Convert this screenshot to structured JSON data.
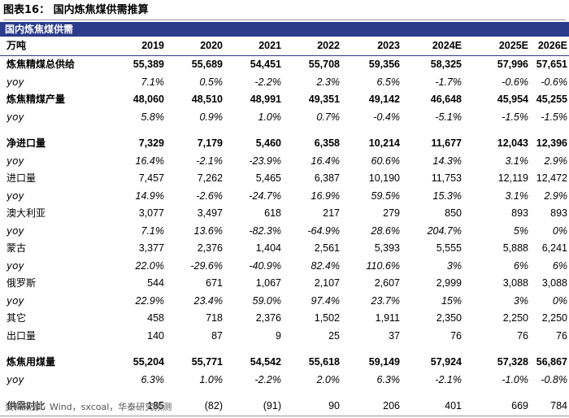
{
  "title": "图表16：  国内炼焦煤供需推算",
  "section_header": "国内炼焦煤供需",
  "unit_label": "万吨",
  "years": [
    "2019",
    "2020",
    "2021",
    "2022",
    "2023",
    "2024E",
    "2025E",
    "2026E"
  ],
  "rows": [
    {
      "label": "炼焦精煤总供给",
      "style": "bold",
      "values": [
        "55,389",
        "55,689",
        "54,451",
        "55,708",
        "59,356",
        "58,325",
        "57,996",
        "57,651"
      ]
    },
    {
      "label": "yoy",
      "style": "yoy",
      "values": [
        "7.1%",
        "0.5%",
        "-2.2%",
        "2.3%",
        "6.5%",
        "-1.7%",
        "-0.6%",
        "-0.6%"
      ]
    },
    {
      "label": "炼焦精煤产量",
      "style": "bold",
      "values": [
        "48,060",
        "48,510",
        "48,991",
        "49,351",
        "49,142",
        "46,648",
        "45,954",
        "45,255"
      ]
    },
    {
      "label": "yoy",
      "style": "yoy",
      "values": [
        "5.8%",
        "0.9%",
        "1.0%",
        "0.7%",
        "-0.4%",
        "-5.1%",
        "-1.5%",
        "-1.5%"
      ]
    },
    {
      "label": "",
      "style": "gap",
      "values": [
        "",
        "",
        "",
        "",
        "",
        "",
        "",
        ""
      ]
    },
    {
      "label": "净进口量",
      "style": "bold",
      "values": [
        "7,329",
        "7,179",
        "5,460",
        "6,358",
        "10,214",
        "11,677",
        "12,043",
        "12,396"
      ]
    },
    {
      "label": "yoy",
      "style": "yoy",
      "values": [
        "16.4%",
        "-2.1%",
        "-23.9%",
        "16.4%",
        "60.6%",
        "14.3%",
        "3.1%",
        "2.9%"
      ]
    },
    {
      "label": "进口量",
      "style": "normal",
      "values": [
        "7,457",
        "7,262",
        "5,465",
        "6,387",
        "10,190",
        "11,753",
        "12,119",
        "12,472"
      ]
    },
    {
      "label": "yoy",
      "style": "yoy",
      "values": [
        "14.9%",
        "-2.6%",
        "-24.7%",
        "16.9%",
        "59.5%",
        "15.3%",
        "3.1%",
        "2.9%"
      ]
    },
    {
      "label": "澳大利亚",
      "style": "normal",
      "values": [
        "3,077",
        "3,497",
        "618",
        "217",
        "279",
        "850",
        "893",
        "893"
      ]
    },
    {
      "label": "yoy",
      "style": "yoy",
      "values": [
        "7.1%",
        "13.6%",
        "-82.3%",
        "-64.9%",
        "28.6%",
        "204.7%",
        "5%",
        "0%"
      ]
    },
    {
      "label": "蒙古",
      "style": "normal",
      "values": [
        "3,377",
        "2,376",
        "1,404",
        "2,561",
        "5,393",
        "5,555",
        "5,888",
        "6,241"
      ]
    },
    {
      "label": "yoy",
      "style": "yoy",
      "values": [
        "22.0%",
        "-29.6%",
        "-40.9%",
        "82.4%",
        "110.6%",
        "3%",
        "6%",
        "6%"
      ]
    },
    {
      "label": "俄罗斯",
      "style": "normal",
      "values": [
        "544",
        "671",
        "1,067",
        "2,107",
        "2,607",
        "2,999",
        "3,088",
        "3,088"
      ]
    },
    {
      "label": "yoy",
      "style": "yoy",
      "values": [
        "22.9%",
        "23.4%",
        "59.0%",
        "97.4%",
        "23.7%",
        "15%",
        "3%",
        "0%"
      ]
    },
    {
      "label": "其它",
      "style": "normal",
      "values": [
        "458",
        "718",
        "2,376",
        "1,502",
        "1,911",
        "2,350",
        "2,250",
        "2,250"
      ]
    },
    {
      "label": "出口量",
      "style": "normal",
      "values": [
        "140",
        "87",
        "9",
        "25",
        "37",
        "76",
        "76",
        "76"
      ]
    },
    {
      "label": "",
      "style": "gap",
      "values": [
        "",
        "",
        "",
        "",
        "",
        "",
        "",
        ""
      ]
    },
    {
      "label": "炼焦用煤量",
      "style": "bold",
      "values": [
        "55,204",
        "55,771",
        "54,542",
        "55,618",
        "59,149",
        "57,924",
        "57,328",
        "56,867"
      ]
    },
    {
      "label": "yoy",
      "style": "yoy",
      "values": [
        "6.3%",
        "1.0%",
        "-2.2%",
        "2.0%",
        "6.3%",
        "-2.1%",
        "-1.0%",
        "-0.8%"
      ]
    },
    {
      "label": "",
      "style": "gap",
      "values": [
        "",
        "",
        "",
        "",
        "",
        "",
        "",
        ""
      ]
    },
    {
      "label": "供需对比",
      "style": "last",
      "values": [
        "185",
        "(82)",
        "(91)",
        "90",
        "206",
        "401",
        "669",
        "784"
      ]
    }
  ],
  "source": "资料来源：Wind，sxcoal，华泰研究预测",
  "colors": {
    "header_band": "#2b3b8b",
    "rule": "#9a9a9a"
  }
}
